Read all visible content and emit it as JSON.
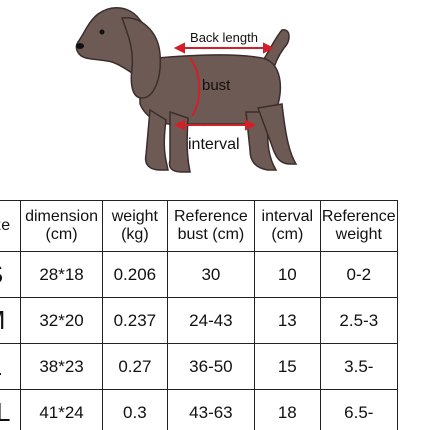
{
  "figure": {
    "labels": {
      "back_length": "Back length",
      "bust": "bust",
      "interval": "interval"
    }
  },
  "table": {
    "header": [
      "Size",
      "dimension (cm)",
      "weight (kg)",
      "Reference bust (cm)",
      "interval (cm)",
      "Reference weight"
    ],
    "rows": [
      [
        "S",
        "28*18",
        "0.206",
        "30",
        "10",
        "0-2"
      ],
      [
        "M",
        "32*20",
        "0.237",
        "24-43",
        "13",
        "2.5-3"
      ],
      [
        "L",
        "38*23",
        "0.27",
        "36-50",
        "15",
        "3.5-"
      ],
      [
        "XL",
        "41*24",
        "0.3",
        "43-63",
        "18",
        "6.5-"
      ]
    ]
  }
}
